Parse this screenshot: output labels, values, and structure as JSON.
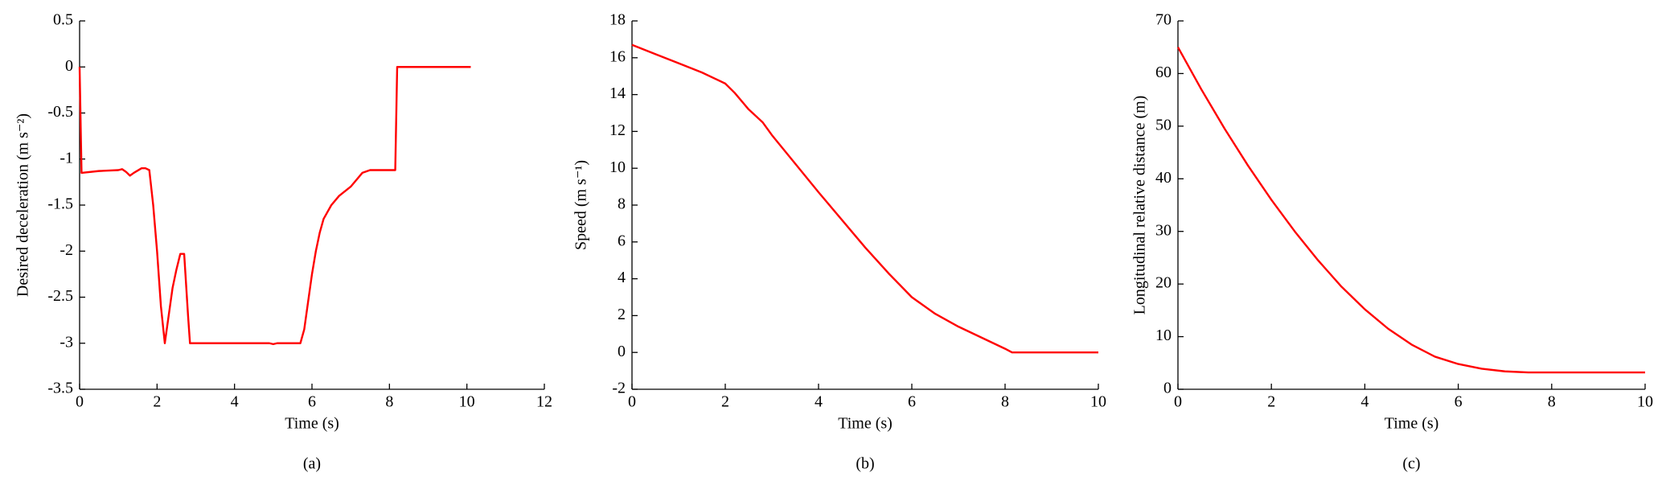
{
  "chart_data": [
    {
      "type": "line",
      "caption": "(a)",
      "xlabel": "Time (s)",
      "ylabel": "Desired deceleration (m s⁻²)",
      "xlim": [
        0,
        12
      ],
      "xticks": [
        0,
        2,
        4,
        6,
        8,
        10,
        12
      ],
      "ylim": [
        -3.5,
        0.5
      ],
      "yticks": [
        -3.5,
        -3,
        -2.5,
        -2,
        -1.5,
        -1,
        -0.5,
        0,
        0.5
      ],
      "series": [
        {
          "color": "#ff0000",
          "x": [
            0,
            0.05,
            0.5,
            1.0,
            1.1,
            1.2,
            1.3,
            1.4,
            1.6,
            1.7,
            1.8,
            1.9,
            2.0,
            2.1,
            2.2,
            2.3,
            2.4,
            2.5,
            2.6,
            2.7,
            2.8,
            2.85,
            3.0,
            4.0,
            4.9,
            5.0,
            5.1,
            5.7,
            5.8,
            5.9,
            6.0,
            6.1,
            6.2,
            6.3,
            6.5,
            6.7,
            7.0,
            7.3,
            7.5,
            8.0,
            8.15,
            8.2,
            9.0,
            10.1
          ],
          "values": [
            0,
            -1.15,
            -1.13,
            -1.12,
            -1.11,
            -1.14,
            -1.18,
            -1.15,
            -1.1,
            -1.1,
            -1.12,
            -1.5,
            -2.0,
            -2.6,
            -3.0,
            -2.7,
            -2.4,
            -2.2,
            -2.03,
            -2.03,
            -2.7,
            -3.0,
            -3.0,
            -3.0,
            -3.0,
            -3.01,
            -3.0,
            -3.0,
            -2.85,
            -2.55,
            -2.25,
            -2.0,
            -1.8,
            -1.65,
            -1.5,
            -1.4,
            -1.3,
            -1.15,
            -1.12,
            -1.12,
            -1.12,
            0,
            0,
            0
          ]
        }
      ]
    },
    {
      "type": "line",
      "caption": "(b)",
      "xlabel": "Time (s)",
      "ylabel": "Speed (m s⁻¹)",
      "xlim": [
        0,
        10
      ],
      "xticks": [
        0,
        2,
        4,
        6,
        8,
        10
      ],
      "ylim": [
        -2,
        18
      ],
      "yticks": [
        -2,
        0,
        2,
        4,
        6,
        8,
        10,
        12,
        14,
        16,
        18
      ],
      "series": [
        {
          "color": "#ff0000",
          "x": [
            0,
            0.5,
            1,
            1.5,
            2,
            2.2,
            2.5,
            2.8,
            3,
            4,
            5,
            5.5,
            6,
            6.5,
            7,
            7.5,
            8,
            8.15,
            9,
            10
          ],
          "values": [
            16.7,
            16.2,
            15.7,
            15.2,
            14.6,
            14.1,
            13.2,
            12.5,
            11.8,
            8.7,
            5.7,
            4.3,
            3.0,
            2.1,
            1.4,
            0.8,
            0.2,
            0,
            0,
            0
          ]
        }
      ]
    },
    {
      "type": "line",
      "caption": "(c)",
      "xlabel": "Time (s)",
      "ylabel": "Longitudinal relative distance (m)",
      "xlim": [
        0,
        10
      ],
      "xticks": [
        0,
        2,
        4,
        6,
        8,
        10
      ],
      "ylim": [
        0,
        70
      ],
      "yticks": [
        0,
        10,
        20,
        30,
        40,
        50,
        60,
        70
      ],
      "series": [
        {
          "color": "#ff0000",
          "x": [
            0,
            0.5,
            1,
            1.5,
            2,
            2.5,
            3,
            3.5,
            4,
            4.5,
            5,
            5.5,
            6,
            6.5,
            7,
            7.5,
            8,
            9,
            10
          ],
          "values": [
            65,
            57,
            49.5,
            42.5,
            36,
            30,
            24.5,
            19.5,
            15.2,
            11.5,
            8.5,
            6.2,
            4.8,
            3.9,
            3.4,
            3.2,
            3.2,
            3.2,
            3.2
          ]
        }
      ]
    }
  ]
}
